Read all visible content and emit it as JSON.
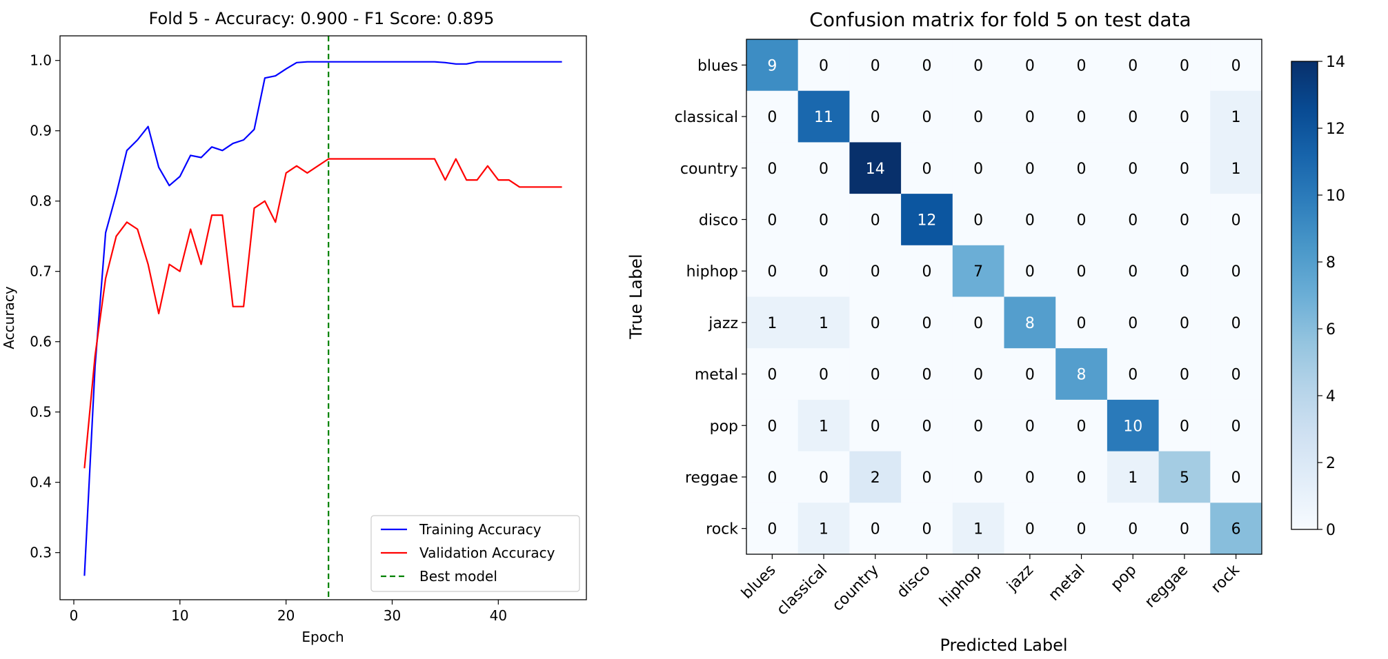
{
  "chart_data": [
    {
      "type": "line",
      "title": "Fold 5 - Accuracy: 0.900 - F1 Score: 0.895",
      "xlabel": "Epoch",
      "ylabel": "Accuracy",
      "xlim": [
        -1.3,
        48.3
      ],
      "ylim": [
        0.233,
        1.035
      ],
      "xticks": [
        0,
        10,
        20,
        30,
        40
      ],
      "yticks": [
        0.3,
        0.4,
        0.5,
        0.6,
        0.7,
        0.8,
        0.9,
        1.0
      ],
      "grid": false,
      "legend_position": "lower-right",
      "x": [
        1,
        2,
        3,
        4,
        5,
        6,
        7,
        8,
        9,
        10,
        11,
        12,
        13,
        14,
        15,
        16,
        17,
        18,
        19,
        20,
        21,
        22,
        23,
        24,
        25,
        26,
        27,
        28,
        29,
        30,
        31,
        32,
        33,
        34,
        35,
        36,
        37,
        38,
        39,
        40,
        41,
        42,
        43,
        44,
        45,
        46
      ],
      "series": [
        {
          "name": "Training Accuracy",
          "color": "#0000ff",
          "values": [
            0.267,
            0.565,
            0.755,
            0.81,
            0.872,
            0.887,
            0.906,
            0.848,
            0.822,
            0.835,
            0.865,
            0.862,
            0.877,
            0.872,
            0.882,
            0.887,
            0.902,
            0.975,
            0.978,
            0.988,
            0.997,
            0.998,
            0.998,
            0.998,
            0.998,
            0.998,
            0.998,
            0.998,
            0.998,
            0.998,
            0.998,
            0.998,
            0.998,
            0.998,
            0.997,
            0.995,
            0.995,
            0.998,
            0.998,
            0.998,
            0.998,
            0.998,
            0.998,
            0.998,
            0.998,
            0.998
          ]
        },
        {
          "name": "Validation Accuracy",
          "color": "#ff0000",
          "values": [
            0.42,
            0.58,
            0.69,
            0.75,
            0.77,
            0.76,
            0.71,
            0.64,
            0.71,
            0.7,
            0.76,
            0.71,
            0.78,
            0.78,
            0.65,
            0.65,
            0.79,
            0.8,
            0.77,
            0.84,
            0.85,
            0.84,
            0.85,
            0.86,
            0.86,
            0.86,
            0.86,
            0.86,
            0.86,
            0.86,
            0.86,
            0.86,
            0.86,
            0.86,
            0.83,
            0.86,
            0.83,
            0.83,
            0.85,
            0.83,
            0.83,
            0.82,
            0.82,
            0.82,
            0.82,
            0.82
          ]
        }
      ],
      "vline": {
        "x": 24,
        "name": "Best model",
        "color": "#008000",
        "style": "dashed"
      }
    },
    {
      "type": "heatmap",
      "title": "Confusion matrix for fold 5 on test data",
      "xlabel": "Predicted Label",
      "ylabel": "True Label",
      "labels": [
        "blues",
        "classical",
        "country",
        "disco",
        "hiphop",
        "jazz",
        "metal",
        "pop",
        "reggae",
        "rock"
      ],
      "matrix": [
        [
          9,
          0,
          0,
          0,
          0,
          0,
          0,
          0,
          0,
          0
        ],
        [
          0,
          11,
          0,
          0,
          0,
          0,
          0,
          0,
          0,
          1
        ],
        [
          0,
          0,
          14,
          0,
          0,
          0,
          0,
          0,
          0,
          1
        ],
        [
          0,
          0,
          0,
          12,
          0,
          0,
          0,
          0,
          0,
          0
        ],
        [
          0,
          0,
          0,
          0,
          7,
          0,
          0,
          0,
          0,
          0
        ],
        [
          1,
          1,
          0,
          0,
          0,
          8,
          0,
          0,
          0,
          0
        ],
        [
          0,
          0,
          0,
          0,
          0,
          0,
          8,
          0,
          0,
          0
        ],
        [
          0,
          1,
          0,
          0,
          0,
          0,
          0,
          10,
          0,
          0
        ],
        [
          0,
          0,
          2,
          0,
          0,
          0,
          0,
          1,
          5,
          0
        ],
        [
          0,
          1,
          0,
          0,
          1,
          0,
          0,
          0,
          0,
          6
        ]
      ],
      "colormap": "Blues",
      "vmin": 0,
      "vmax": 14,
      "colorbar_ticks": [
        0,
        2,
        4,
        6,
        8,
        10,
        12,
        14
      ]
    }
  ]
}
